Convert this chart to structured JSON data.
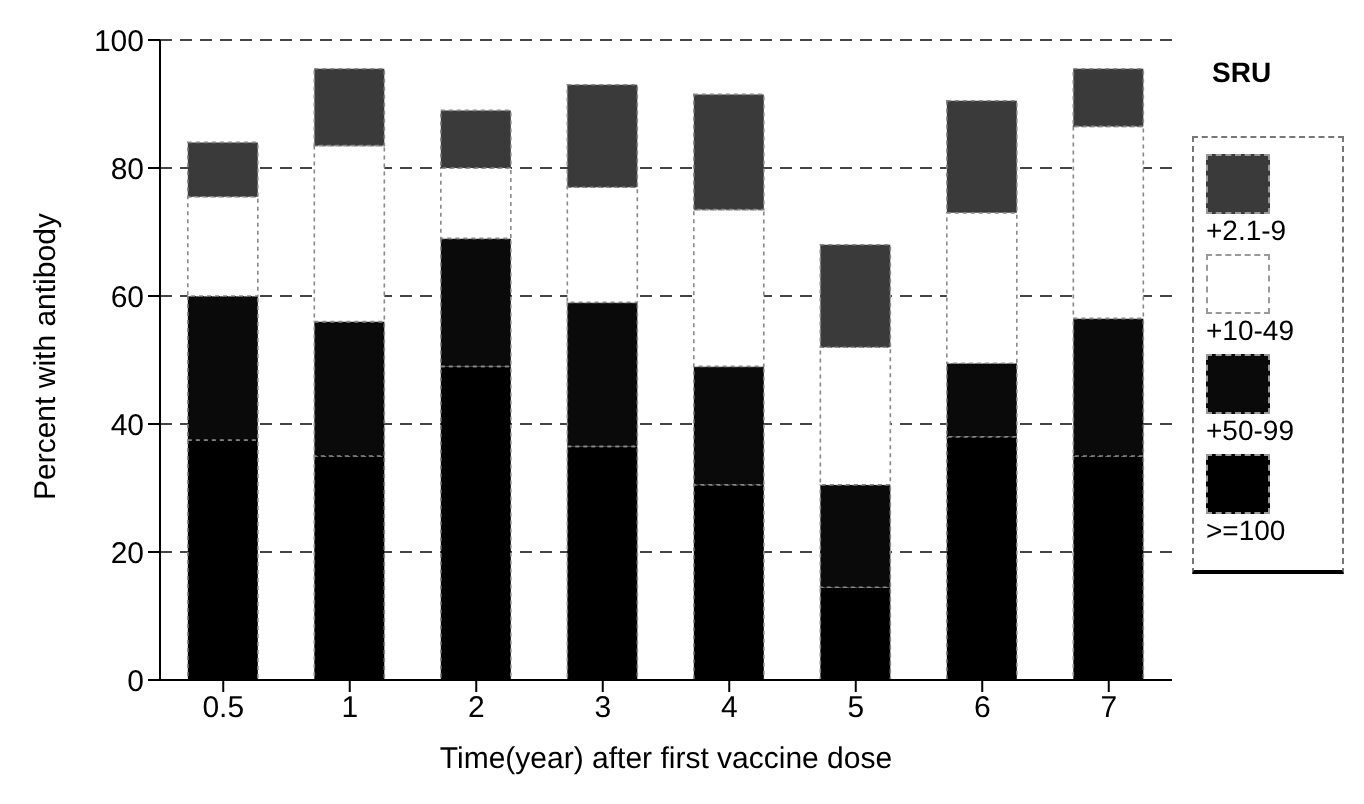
{
  "chart_data": {
    "type": "bar",
    "stacked": true,
    "xlabel": "Time(year) after first vaccine dose",
    "ylabel": "Percent with antibody",
    "legend_title": "SRU",
    "categories": [
      "0.5",
      "1",
      "2",
      "3",
      "4",
      "5",
      "6",
      "7"
    ],
    "series": [
      {
        "name": ">=100",
        "color": "#000000",
        "values": [
          37.5,
          35,
          49,
          36.5,
          30.5,
          14.5,
          38,
          35
        ]
      },
      {
        "name": "+50-99",
        "color": "#0a0a0a",
        "values": [
          22.5,
          21,
          20,
          22.5,
          18.5,
          16,
          11.5,
          21.5
        ]
      },
      {
        "name": "+10-49",
        "color": "#ffffff",
        "values": [
          15.5,
          27.5,
          11,
          18,
          24.5,
          21.5,
          23.5,
          30
        ]
      },
      {
        "name": "+2.1-9",
        "color": "#3a3a3a",
        "values": [
          8.5,
          12,
          9,
          16,
          18,
          16,
          17.5,
          9
        ]
      }
    ],
    "ylim": [
      0,
      100
    ],
    "yticks": [
      0,
      20,
      40,
      60,
      80,
      100
    ],
    "grid": "y",
    "legend": "right"
  }
}
